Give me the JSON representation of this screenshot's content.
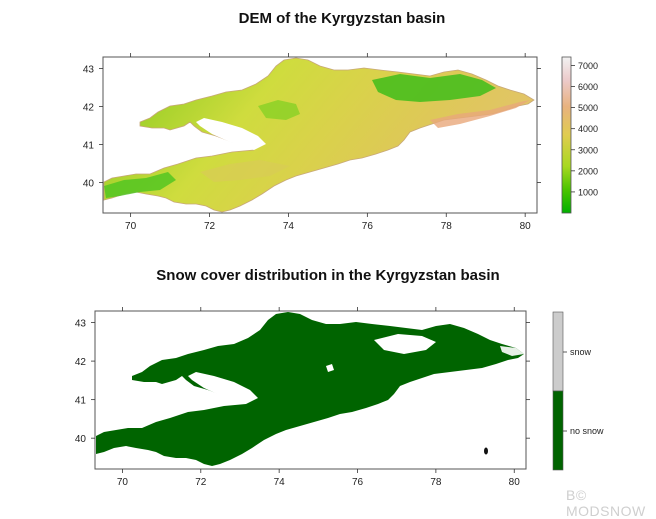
{
  "watermark": "B© MODSNOW",
  "chart_data": [
    {
      "type": "heatmap",
      "title": "DEM of the Kyrgyzstan basin",
      "x_ticks": [
        70,
        72,
        74,
        76,
        78,
        80
      ],
      "y_ticks": [
        40,
        41,
        42,
        43
      ],
      "xlim": [
        69.3,
        80.3
      ],
      "ylim": [
        39.2,
        43.3
      ],
      "colorbar": {
        "ticks": [
          1000,
          2000,
          3000,
          4000,
          5000,
          6000,
          7000
        ],
        "range": [
          0,
          7400
        ],
        "colors": [
          "#00b400",
          "#7dd000",
          "#d4e030",
          "#e2c056",
          "#eab08a",
          "#f0c6c6",
          "#f5f5f5"
        ]
      },
      "legend_placement": "right"
    },
    {
      "type": "heatmap",
      "title": "Snow cover distribution in the Kyrgyzstan basin",
      "x_ticks": [
        70,
        72,
        74,
        76,
        78,
        80
      ],
      "y_ticks": [
        40,
        41,
        42,
        43
      ],
      "xlim": [
        69.3,
        80.3
      ],
      "ylim": [
        39.2,
        43.3
      ],
      "categories": [
        {
          "label": "snow",
          "color": "#cccccc"
        },
        {
          "label": "no snow",
          "color": "#006400"
        }
      ],
      "legend_placement": "right"
    }
  ]
}
